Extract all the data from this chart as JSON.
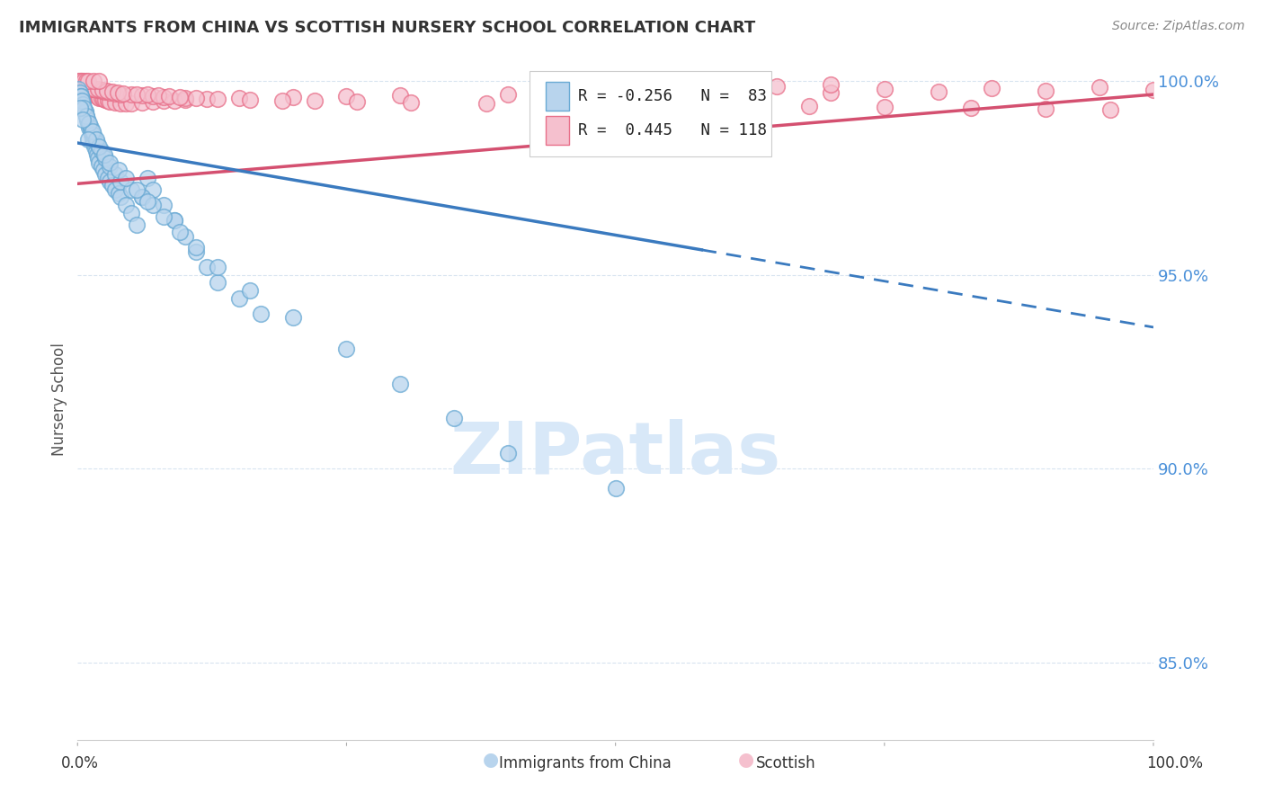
{
  "title": "IMMIGRANTS FROM CHINA VS SCOTTISH NURSERY SCHOOL CORRELATION CHART",
  "source": "Source: ZipAtlas.com",
  "ylabel": "Nursery School",
  "legend_china": "Immigrants from China",
  "legend_scottish": "Scottish",
  "ytick_labels": [
    "85.0%",
    "90.0%",
    "95.0%",
    "100.0%"
  ],
  "ytick_values": [
    0.85,
    0.9,
    0.95,
    1.0
  ],
  "color_china_fill": "#b8d4ed",
  "color_china_edge": "#6aaad4",
  "color_scottish_fill": "#f5c0ce",
  "color_scottish_edge": "#e8708a",
  "color_line_china": "#3a7abf",
  "color_line_scottish": "#d45070",
  "color_grid": "#d8e4f0",
  "color_title": "#333333",
  "color_source": "#888888",
  "color_axis_right": "#4a90d9",
  "color_watermark": "#d8e8f8",
  "china_x": [
    0.001,
    0.002,
    0.003,
    0.004,
    0.005,
    0.006,
    0.007,
    0.008,
    0.009,
    0.01,
    0.011,
    0.012,
    0.013,
    0.014,
    0.015,
    0.016,
    0.017,
    0.018,
    0.019,
    0.02,
    0.022,
    0.024,
    0.026,
    0.028,
    0.03,
    0.032,
    0.035,
    0.038,
    0.04,
    0.045,
    0.05,
    0.055,
    0.06,
    0.065,
    0.07,
    0.08,
    0.09,
    0.1,
    0.11,
    0.12,
    0.13,
    0.15,
    0.17,
    0.003,
    0.005,
    0.007,
    0.009,
    0.012,
    0.015,
    0.018,
    0.022,
    0.026,
    0.03,
    0.035,
    0.04,
    0.05,
    0.06,
    0.07,
    0.09,
    0.004,
    0.006,
    0.008,
    0.011,
    0.014,
    0.017,
    0.02,
    0.025,
    0.03,
    0.038,
    0.045,
    0.055,
    0.065,
    0.08,
    0.095,
    0.11,
    0.13,
    0.16,
    0.2,
    0.25,
    0.3,
    0.35,
    0.4,
    0.5,
    0.002,
    0.005,
    0.01
  ],
  "china_y": [
    0.998,
    0.997,
    0.996,
    0.995,
    0.994,
    0.993,
    0.992,
    0.991,
    0.99,
    0.989,
    0.988,
    0.987,
    0.986,
    0.985,
    0.984,
    0.983,
    0.982,
    0.981,
    0.98,
    0.979,
    0.978,
    0.977,
    0.976,
    0.975,
    0.974,
    0.973,
    0.972,
    0.971,
    0.97,
    0.968,
    0.966,
    0.963,
    0.97,
    0.975,
    0.972,
    0.968,
    0.964,
    0.96,
    0.956,
    0.952,
    0.948,
    0.944,
    0.94,
    0.996,
    0.994,
    0.992,
    0.99,
    0.988,
    0.986,
    0.984,
    0.982,
    0.98,
    0.978,
    0.976,
    0.974,
    0.972,
    0.97,
    0.968,
    0.964,
    0.995,
    0.993,
    0.991,
    0.989,
    0.987,
    0.985,
    0.983,
    0.981,
    0.979,
    0.977,
    0.975,
    0.972,
    0.969,
    0.965,
    0.961,
    0.957,
    0.952,
    0.946,
    0.939,
    0.931,
    0.922,
    0.913,
    0.904,
    0.895,
    0.993,
    0.99,
    0.985
  ],
  "scottish_x": [
    0.001,
    0.002,
    0.003,
    0.004,
    0.005,
    0.006,
    0.007,
    0.008,
    0.009,
    0.01,
    0.011,
    0.012,
    0.013,
    0.014,
    0.015,
    0.016,
    0.017,
    0.018,
    0.019,
    0.02,
    0.022,
    0.024,
    0.026,
    0.028,
    0.03,
    0.035,
    0.04,
    0.045,
    0.05,
    0.06,
    0.07,
    0.08,
    0.09,
    0.1,
    0.12,
    0.15,
    0.2,
    0.25,
    0.3,
    0.4,
    0.5,
    0.6,
    0.7,
    0.8,
    0.9,
    1.0,
    0.002,
    0.004,
    0.006,
    0.008,
    0.01,
    0.012,
    0.015,
    0.018,
    0.022,
    0.026,
    0.03,
    0.035,
    0.04,
    0.05,
    0.06,
    0.07,
    0.08,
    0.1,
    0.003,
    0.005,
    0.007,
    0.009,
    0.011,
    0.013,
    0.016,
    0.019,
    0.023,
    0.027,
    0.032,
    0.037,
    0.042,
    0.055,
    0.065,
    0.075,
    0.085,
    0.095,
    0.11,
    0.13,
    0.16,
    0.19,
    0.22,
    0.26,
    0.31,
    0.38,
    0.45,
    0.52,
    0.6,
    0.68,
    0.75,
    0.83,
    0.9,
    0.96,
    0.75,
    0.85,
    0.95,
    0.65,
    0.55,
    0.7,
    0.001,
    0.003,
    0.004,
    0.002,
    0.006,
    0.008,
    0.01,
    0.015,
    0.02
  ],
  "scottish_y": [
    0.9995,
    0.9993,
    0.9991,
    0.9989,
    0.9987,
    0.9985,
    0.9983,
    0.9981,
    0.9979,
    0.9977,
    0.9975,
    0.9973,
    0.9971,
    0.9969,
    0.9967,
    0.9965,
    0.9963,
    0.9961,
    0.9959,
    0.9957,
    0.9955,
    0.9953,
    0.9951,
    0.9949,
    0.9947,
    0.9945,
    0.9943,
    0.9941,
    0.9942,
    0.9944,
    0.9946,
    0.9948,
    0.995,
    0.9952,
    0.9954,
    0.9956,
    0.9958,
    0.996,
    0.9962,
    0.9964,
    0.9966,
    0.9968,
    0.997,
    0.9972,
    0.9974,
    0.9976,
    0.999,
    0.9988,
    0.9986,
    0.9984,
    0.9982,
    0.998,
    0.9978,
    0.9976,
    0.9974,
    0.9972,
    0.997,
    0.9968,
    0.9966,
    0.9964,
    0.9962,
    0.996,
    0.9958,
    0.9956,
    0.9992,
    0.999,
    0.9988,
    0.9986,
    0.9984,
    0.9982,
    0.998,
    0.9978,
    0.9976,
    0.9974,
    0.9972,
    0.997,
    0.9968,
    0.9966,
    0.9964,
    0.9962,
    0.996,
    0.9958,
    0.9956,
    0.9954,
    0.9952,
    0.995,
    0.9948,
    0.9946,
    0.9944,
    0.9942,
    0.994,
    0.9938,
    0.9936,
    0.9934,
    0.9932,
    0.993,
    0.9928,
    0.9926,
    0.998,
    0.9982,
    0.9984,
    0.9986,
    0.9988,
    0.999,
    1.0,
    1.0,
    1.0,
    1.0,
    1.0,
    1.0,
    1.0,
    1.0,
    1.0
  ],
  "china_line_y_start": 0.984,
  "china_line_y_end": 0.9365,
  "china_line_solid_end": 0.58,
  "scottish_line_y_start": 0.9735,
  "scottish_line_y_end": 0.9965,
  "xlim": [
    0.0,
    1.0
  ],
  "ylim": [
    0.83,
    1.006
  ]
}
